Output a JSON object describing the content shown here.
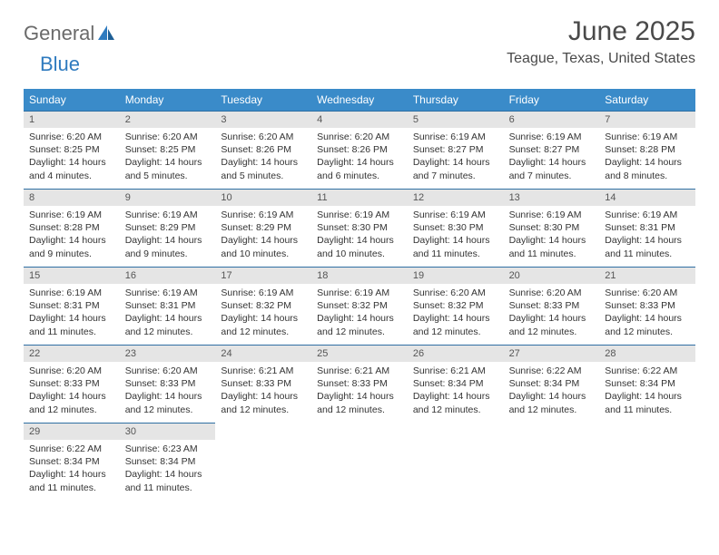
{
  "brand": {
    "part1": "General",
    "part2": "Blue"
  },
  "title": "June 2025",
  "location": "Teague, Texas, United States",
  "colors": {
    "header_bg": "#3a8bc9",
    "header_text": "#ffffff",
    "daynum_bg": "#e5e5e5",
    "cell_border": "#2f6fa3",
    "brand_gray": "#6a6a6a",
    "brand_blue": "#2f7bbf"
  },
  "weekdays": [
    "Sunday",
    "Monday",
    "Tuesday",
    "Wednesday",
    "Thursday",
    "Friday",
    "Saturday"
  ],
  "days": [
    {
      "n": "1",
      "sunrise": "6:20 AM",
      "sunset": "8:25 PM",
      "daylight": "14 hours and 4 minutes."
    },
    {
      "n": "2",
      "sunrise": "6:20 AM",
      "sunset": "8:25 PM",
      "daylight": "14 hours and 5 minutes."
    },
    {
      "n": "3",
      "sunrise": "6:20 AM",
      "sunset": "8:26 PM",
      "daylight": "14 hours and 5 minutes."
    },
    {
      "n": "4",
      "sunrise": "6:20 AM",
      "sunset": "8:26 PM",
      "daylight": "14 hours and 6 minutes."
    },
    {
      "n": "5",
      "sunrise": "6:19 AM",
      "sunset": "8:27 PM",
      "daylight": "14 hours and 7 minutes."
    },
    {
      "n": "6",
      "sunrise": "6:19 AM",
      "sunset": "8:27 PM",
      "daylight": "14 hours and 7 minutes."
    },
    {
      "n": "7",
      "sunrise": "6:19 AM",
      "sunset": "8:28 PM",
      "daylight": "14 hours and 8 minutes."
    },
    {
      "n": "8",
      "sunrise": "6:19 AM",
      "sunset": "8:28 PM",
      "daylight": "14 hours and 9 minutes."
    },
    {
      "n": "9",
      "sunrise": "6:19 AM",
      "sunset": "8:29 PM",
      "daylight": "14 hours and 9 minutes."
    },
    {
      "n": "10",
      "sunrise": "6:19 AM",
      "sunset": "8:29 PM",
      "daylight": "14 hours and 10 minutes."
    },
    {
      "n": "11",
      "sunrise": "6:19 AM",
      "sunset": "8:30 PM",
      "daylight": "14 hours and 10 minutes."
    },
    {
      "n": "12",
      "sunrise": "6:19 AM",
      "sunset": "8:30 PM",
      "daylight": "14 hours and 11 minutes."
    },
    {
      "n": "13",
      "sunrise": "6:19 AM",
      "sunset": "8:30 PM",
      "daylight": "14 hours and 11 minutes."
    },
    {
      "n": "14",
      "sunrise": "6:19 AM",
      "sunset": "8:31 PM",
      "daylight": "14 hours and 11 minutes."
    },
    {
      "n": "15",
      "sunrise": "6:19 AM",
      "sunset": "8:31 PM",
      "daylight": "14 hours and 11 minutes."
    },
    {
      "n": "16",
      "sunrise": "6:19 AM",
      "sunset": "8:31 PM",
      "daylight": "14 hours and 12 minutes."
    },
    {
      "n": "17",
      "sunrise": "6:19 AM",
      "sunset": "8:32 PM",
      "daylight": "14 hours and 12 minutes."
    },
    {
      "n": "18",
      "sunrise": "6:19 AM",
      "sunset": "8:32 PM",
      "daylight": "14 hours and 12 minutes."
    },
    {
      "n": "19",
      "sunrise": "6:20 AM",
      "sunset": "8:32 PM",
      "daylight": "14 hours and 12 minutes."
    },
    {
      "n": "20",
      "sunrise": "6:20 AM",
      "sunset": "8:33 PM",
      "daylight": "14 hours and 12 minutes."
    },
    {
      "n": "21",
      "sunrise": "6:20 AM",
      "sunset": "8:33 PM",
      "daylight": "14 hours and 12 minutes."
    },
    {
      "n": "22",
      "sunrise": "6:20 AM",
      "sunset": "8:33 PM",
      "daylight": "14 hours and 12 minutes."
    },
    {
      "n": "23",
      "sunrise": "6:20 AM",
      "sunset": "8:33 PM",
      "daylight": "14 hours and 12 minutes."
    },
    {
      "n": "24",
      "sunrise": "6:21 AM",
      "sunset": "8:33 PM",
      "daylight": "14 hours and 12 minutes."
    },
    {
      "n": "25",
      "sunrise": "6:21 AM",
      "sunset": "8:33 PM",
      "daylight": "14 hours and 12 minutes."
    },
    {
      "n": "26",
      "sunrise": "6:21 AM",
      "sunset": "8:34 PM",
      "daylight": "14 hours and 12 minutes."
    },
    {
      "n": "27",
      "sunrise": "6:22 AM",
      "sunset": "8:34 PM",
      "daylight": "14 hours and 12 minutes."
    },
    {
      "n": "28",
      "sunrise": "6:22 AM",
      "sunset": "8:34 PM",
      "daylight": "14 hours and 11 minutes."
    },
    {
      "n": "29",
      "sunrise": "6:22 AM",
      "sunset": "8:34 PM",
      "daylight": "14 hours and 11 minutes."
    },
    {
      "n": "30",
      "sunrise": "6:23 AM",
      "sunset": "8:34 PM",
      "daylight": "14 hours and 11 minutes."
    }
  ],
  "labels": {
    "sunrise": "Sunrise: ",
    "sunset": "Sunset: ",
    "daylight": "Daylight: "
  },
  "grid": {
    "start_offset": 0,
    "total_cells": 35
  }
}
